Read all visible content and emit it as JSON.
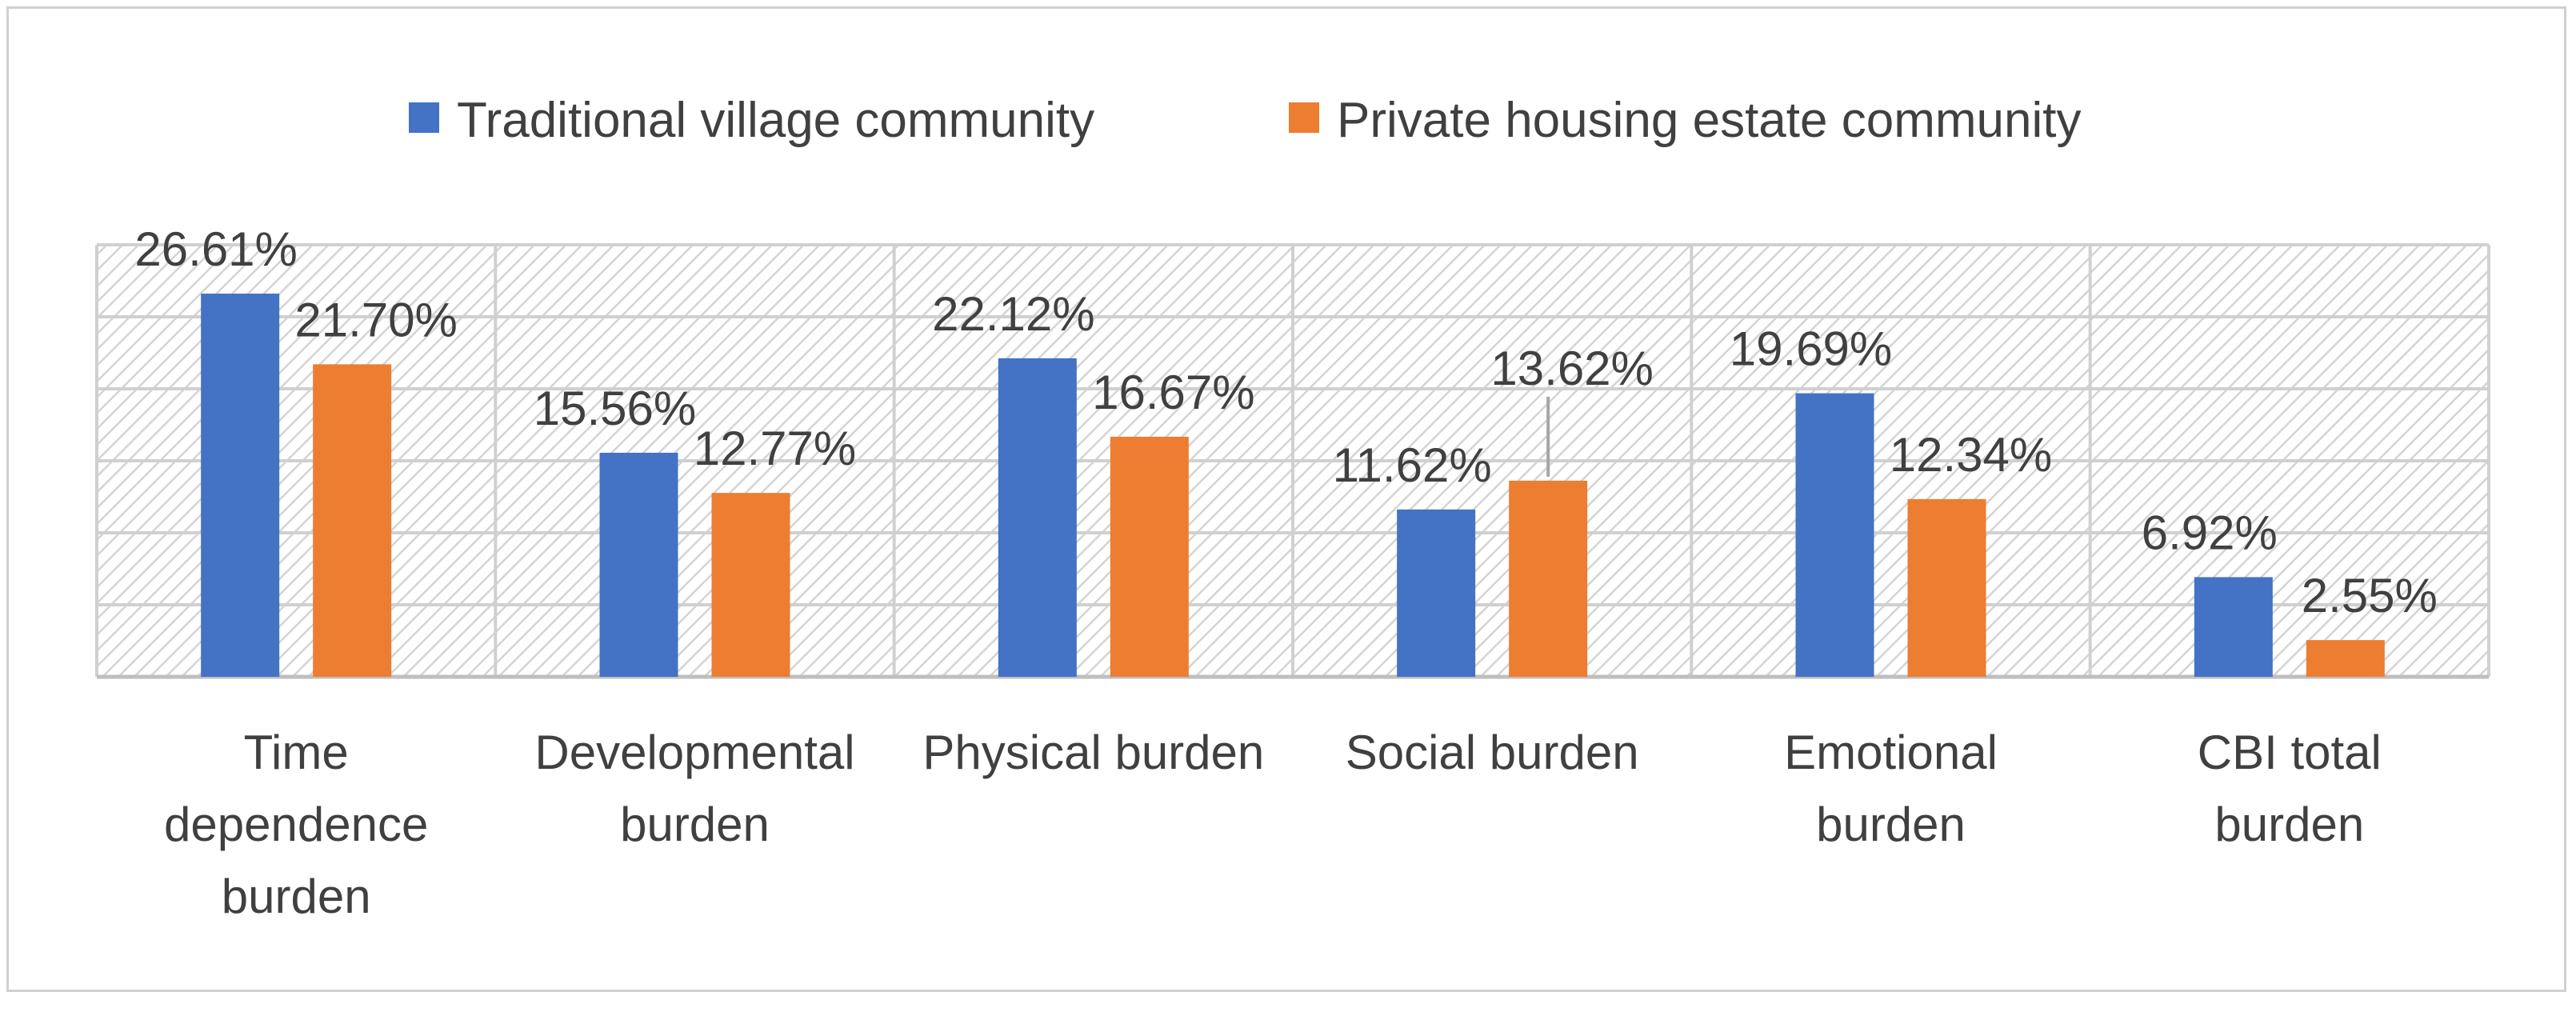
{
  "chart_data": {
    "type": "bar",
    "title": "",
    "xlabel": "",
    "ylabel": "",
    "ylim": [
      0,
      30
    ],
    "grid": true,
    "legend_position": "top",
    "categories": [
      [
        "Time",
        "dependence",
        "burden"
      ],
      [
        "Developmental",
        "burden"
      ],
      [
        "Physical burden"
      ],
      [
        "Social burden"
      ],
      [
        "Emotional",
        "burden"
      ],
      [
        "CBI total",
        "burden"
      ]
    ],
    "series": [
      {
        "name": "Traditional village community",
        "color": "#4472C4",
        "values": [
          26.61,
          15.56,
          22.12,
          11.62,
          19.69,
          6.92
        ],
        "labels": [
          "26.61%",
          "15.56%",
          "22.12%",
          "11.62%",
          "19.69%",
          "6.92%"
        ]
      },
      {
        "name": "Private housing estate community",
        "color": "#ED7D31",
        "values": [
          21.7,
          12.77,
          16.67,
          13.62,
          12.34,
          2.55
        ],
        "labels": [
          "21.70%",
          "12.77%",
          "16.67%",
          "13.62%",
          "12.34%",
          "2.55%"
        ]
      }
    ]
  }
}
